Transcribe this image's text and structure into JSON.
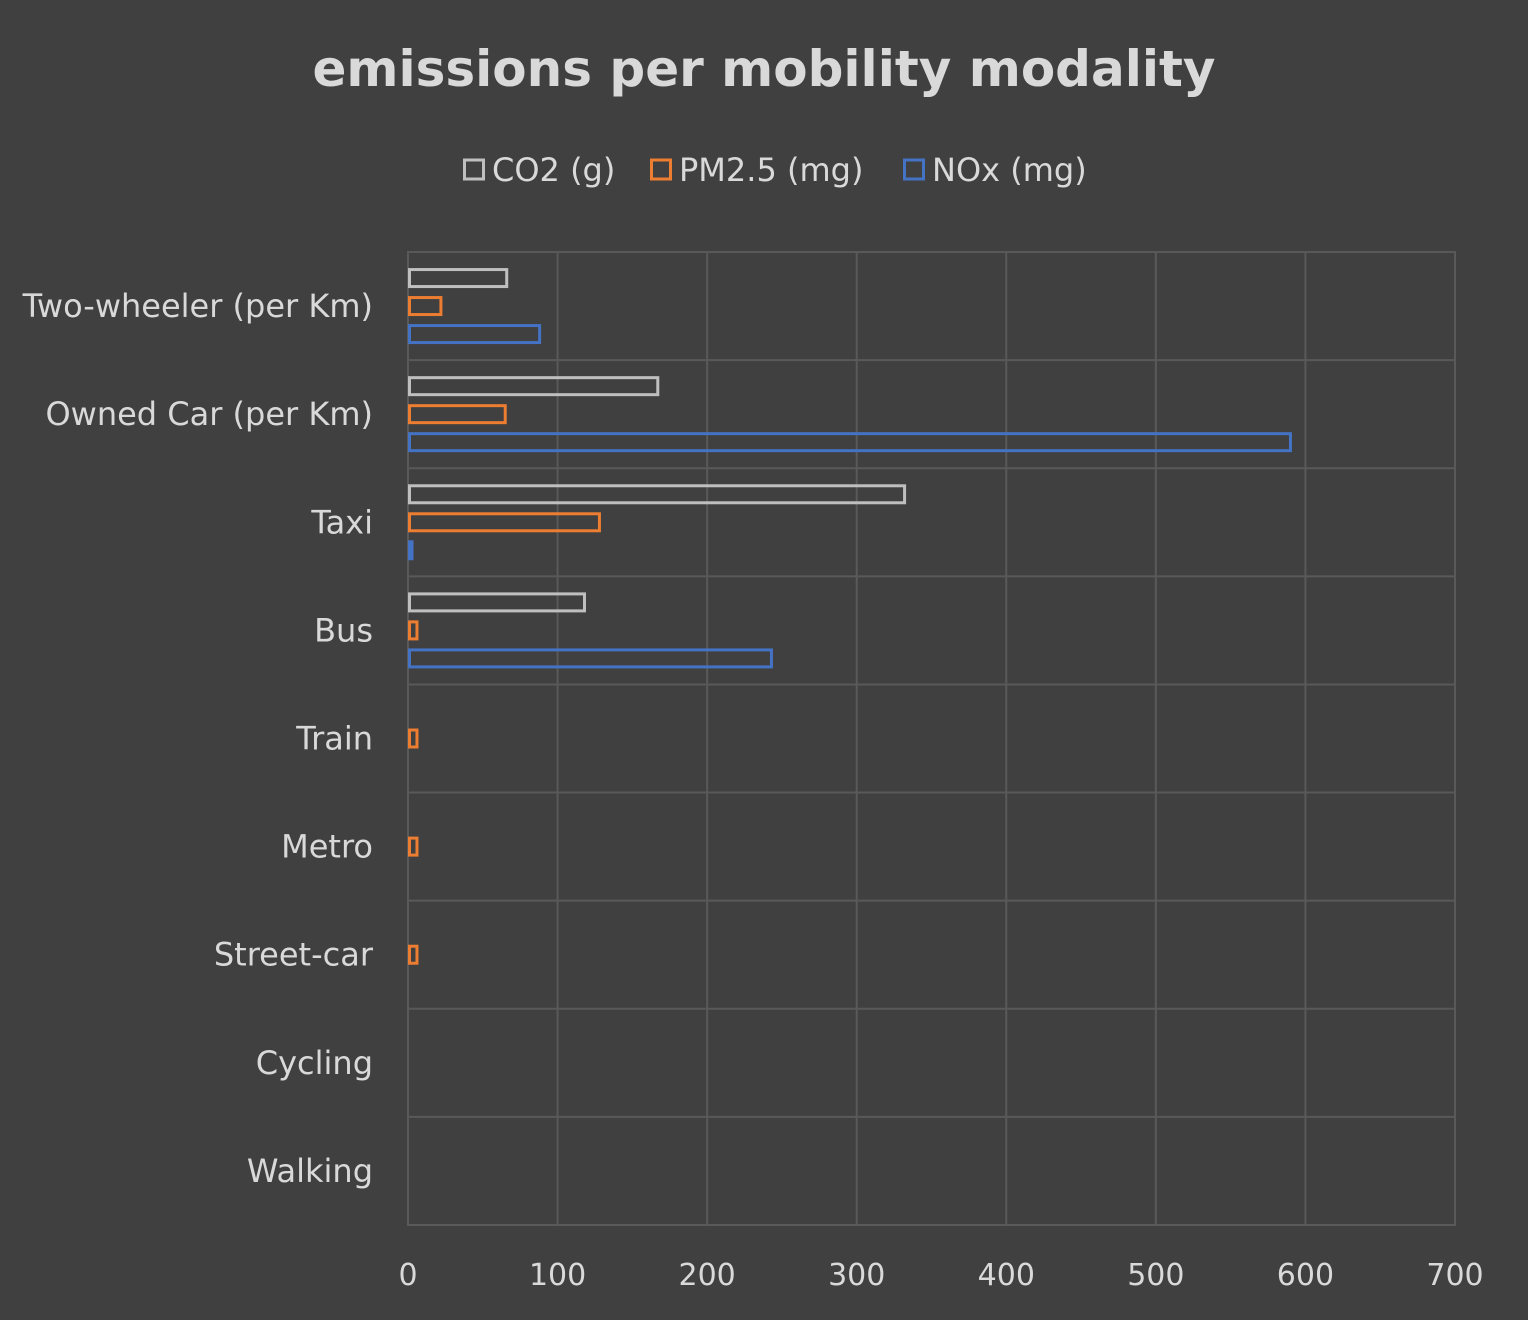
{
  "chart_data": {
    "type": "bar",
    "orientation": "horizontal",
    "title": "emissions per mobility modality",
    "xlabel": "",
    "ylabel": "",
    "xlim": [
      0,
      700
    ],
    "x_ticks": [
      "0",
      "100",
      "200",
      "300",
      "400",
      "500",
      "600",
      "700"
    ],
    "grid": true,
    "legend_position": "top",
    "categories": [
      "Two-wheeler (per Km)",
      "Owned Car (per Km)",
      "Taxi",
      "Bus",
      "Train",
      "Metro",
      "Street-car",
      "Cycling",
      "Walking"
    ],
    "series": [
      {
        "name": "CO2 (g)",
        "color": "#bfbfbf",
        "values": [
          66,
          167,
          332,
          118,
          0,
          0,
          0,
          0,
          0
        ]
      },
      {
        "name": "PM2.5 (mg)",
        "color": "#ed7d31",
        "values": [
          22,
          65,
          128,
          6,
          6,
          6,
          6,
          0,
          0
        ]
      },
      {
        "name": "NOx (mg)",
        "color": "#4472c4",
        "values": [
          88,
          590,
          2,
          243,
          0,
          0,
          0,
          0,
          0
        ]
      }
    ]
  },
  "colors": {
    "background": "#404040",
    "text": "#d9d9d9",
    "grid": "#595959"
  }
}
